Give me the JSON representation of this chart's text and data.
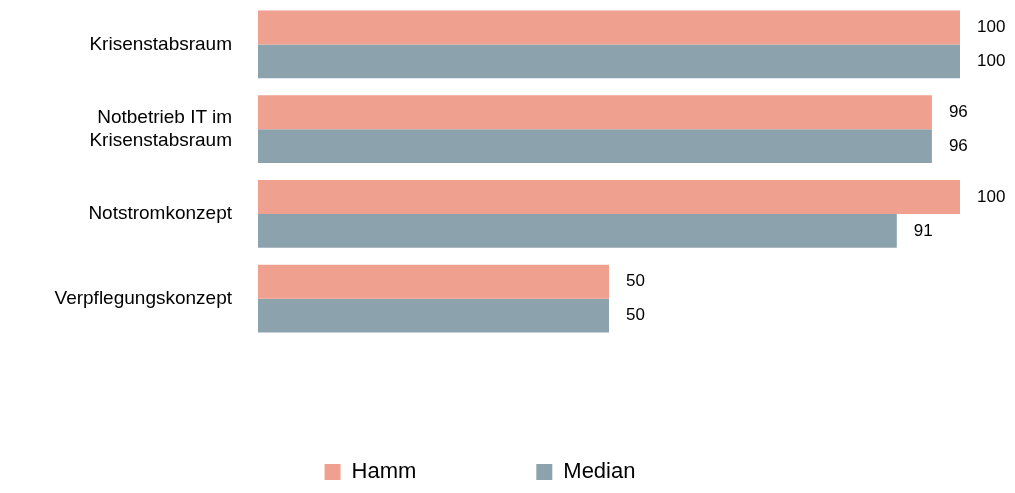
{
  "chart_data": {
    "type": "bar",
    "orientation": "horizontal",
    "categories": [
      "Krisenstabsraum",
      "Notbetrieb IT im Krisenstabsraum",
      "Notstromkonzept",
      "Verpflegungskonzept"
    ],
    "series": [
      {
        "name": "Hamm",
        "color": "#f0a08e",
        "values": [
          100,
          96,
          100,
          50
        ]
      },
      {
        "name": "Median",
        "color": "#8ca3ae",
        "values": [
          100,
          96,
          91,
          50
        ]
      }
    ],
    "xlim": [
      0,
      100
    ],
    "data_labels": true,
    "legend": "bottom",
    "tick_labels": "y"
  }
}
